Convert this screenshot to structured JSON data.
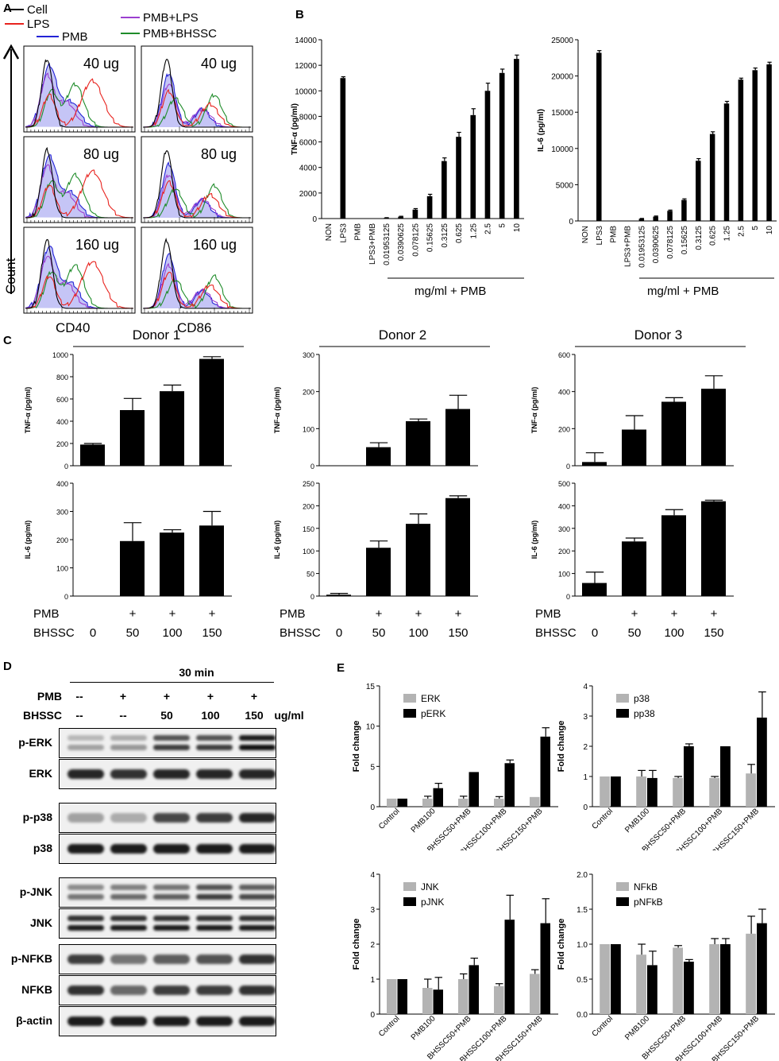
{
  "panels": {
    "a": "A",
    "b": "B",
    "c": "C",
    "d": "D",
    "e": "E"
  },
  "panel_a": {
    "legend": [
      {
        "label": "Cell",
        "color": "#000000"
      },
      {
        "label": "LPS",
        "color": "#e8231e"
      },
      {
        "label": "PMB",
        "color": "#2323d6"
      },
      {
        "label": "PMB+LPS",
        "color": "#9b3fd0"
      },
      {
        "label": "PMB+BHSSC",
        "color": "#1f8c2a"
      }
    ],
    "y_label": "Count",
    "x_labels": [
      "CD40",
      "CD86"
    ],
    "doses": [
      "40 ug",
      "80 ug",
      "160 ug"
    ]
  },
  "panel_b_xgroup": "mg/ml + PMB",
  "panel_c": {
    "donors": [
      "Donor 1",
      "Donor 2",
      "Donor 3"
    ],
    "row_labels": [
      "PMB",
      "BHSSC"
    ],
    "pmb_marks": [
      "",
      "+",
      "+",
      "+"
    ],
    "bhssc_values": [
      "0",
      "50",
      "100",
      "150"
    ]
  },
  "panel_d": {
    "time": "30 min",
    "row_pmb_label": "PMB",
    "row_bhssc_label": "BHSSC",
    "unit": "ug/ml",
    "pmb_marks": [
      "--",
      "+",
      "+",
      "+",
      "+"
    ],
    "bhssc_marks": [
      "--",
      "--",
      "50",
      "100",
      "150"
    ],
    "blots": [
      "p-ERK",
      "ERK",
      "p-p38",
      "p38",
      "p-JNK",
      "JNK",
      "p-NFKB",
      "NFKB",
      "β-actin"
    ]
  },
  "chart_data": [
    {
      "id": "B1",
      "type": "bar",
      "ylabel": "TNF-α (pg/ml)",
      "ylim": [
        0,
        14000
      ],
      "yticks": [
        0,
        2000,
        4000,
        6000,
        8000,
        10000,
        12000,
        14000
      ],
      "categories": [
        "NON",
        "LPS3",
        "PMB",
        "LPS3+PMB",
        "0.01953125",
        "0.0390625",
        "0.078125",
        "0.15625",
        "0.3125",
        "0.625",
        "1.25",
        "2.5",
        "5",
        "10"
      ],
      "values": [
        0,
        11000,
        0,
        0,
        50,
        150,
        700,
        1750,
        4500,
        6400,
        8100,
        10000,
        11400,
        12500
      ],
      "errors": [
        0,
        100,
        0,
        0,
        20,
        30,
        80,
        150,
        250,
        350,
        500,
        600,
        300,
        300
      ]
    },
    {
      "id": "B2",
      "type": "bar",
      "ylabel": "IL-6 (pg/ml)",
      "ylim": [
        0,
        25000
      ],
      "yticks": [
        0,
        5000,
        10000,
        15000,
        20000,
        25000
      ],
      "categories": [
        "NON",
        "LPS3",
        "PMB",
        "LPS3+PMB",
        "0.01953125",
        "0.0390625",
        "0.078125",
        "0.15625",
        "0.3125",
        "0.625",
        "1.25",
        "2.5",
        "5",
        "10"
      ],
      "values": [
        0,
        23200,
        0,
        0,
        300,
        600,
        1400,
        2900,
        8300,
        12000,
        16200,
        19500,
        20800,
        21600
      ],
      "errors": [
        0,
        300,
        0,
        0,
        50,
        80,
        100,
        150,
        300,
        300,
        300,
        200,
        300,
        300
      ]
    },
    {
      "id": "C-TNF-1",
      "type": "bar",
      "ylabel": "TNF-α (pg/ml)",
      "ylim": [
        0,
        1000
      ],
      "yticks": [
        0,
        200,
        400,
        600,
        800,
        1000
      ],
      "values": [
        190,
        500,
        670,
        960
      ],
      "errors": [
        10,
        105,
        55,
        20
      ]
    },
    {
      "id": "C-TNF-2",
      "type": "bar",
      "ylabel": "TNF-α (pg/ml)",
      "ylim": [
        0,
        300
      ],
      "yticks": [
        0,
        100,
        200,
        300
      ],
      "values": [
        0,
        50,
        120,
        153
      ],
      "errors": [
        0,
        12,
        6,
        37
      ]
    },
    {
      "id": "C-TNF-3",
      "type": "bar",
      "ylabel": "TNF-α (pg/ml)",
      "ylim": [
        0,
        600
      ],
      "yticks": [
        0,
        200,
        400,
        600
      ],
      "values": [
        20,
        195,
        345,
        415
      ],
      "errors": [
        50,
        75,
        22,
        70
      ]
    },
    {
      "id": "C-IL6-1",
      "type": "bar",
      "ylabel": "IL-6 (pg/ml)",
      "ylim": [
        0,
        400
      ],
      "yticks": [
        0,
        100,
        200,
        300,
        400
      ],
      "values": [
        0,
        195,
        225,
        250
      ],
      "errors": [
        0,
        65,
        10,
        50
      ]
    },
    {
      "id": "C-IL6-2",
      "type": "bar",
      "ylabel": "IL-6 (pg/ml)",
      "ylim": [
        0,
        250
      ],
      "yticks": [
        0,
        50,
        100,
        150,
        200,
        250
      ],
      "values": [
        3,
        107,
        160,
        217
      ],
      "errors": [
        3,
        15,
        22,
        5
      ]
    },
    {
      "id": "C-IL6-3",
      "type": "bar",
      "ylabel": "IL-6 (pg/ml)",
      "ylim": [
        0,
        500
      ],
      "yticks": [
        0,
        100,
        200,
        300,
        400,
        500
      ],
      "values": [
        58,
        242,
        358,
        420
      ],
      "errors": [
        48,
        15,
        25,
        5
      ]
    },
    {
      "id": "E1",
      "type": "bar",
      "ylabel": "Fold change",
      "ylim": [
        0,
        15
      ],
      "yticks": [
        0,
        5,
        10,
        15
      ],
      "categories": [
        "Control",
        "PMB100",
        "BHSSC50+PMB",
        "BHSSC100+PMB",
        "BHSSC150+PMB"
      ],
      "series": [
        {
          "name": "ERK",
          "color": "#b3b3b3",
          "values": [
            1,
            1,
            1,
            1,
            1.2
          ],
          "errors": [
            0,
            0.3,
            0.3,
            0.25,
            0
          ]
        },
        {
          "name": "pERK",
          "color": "#000000",
          "values": [
            1,
            2.3,
            4.3,
            5.4,
            8.7
          ],
          "errors": [
            0,
            0.6,
            0,
            0.4,
            1.1
          ]
        }
      ]
    },
    {
      "id": "E2",
      "type": "bar",
      "ylabel": "Fold change",
      "ylim": [
        0,
        4
      ],
      "yticks": [
        0,
        1,
        2,
        3,
        4
      ],
      "categories": [
        "Control",
        "PMB100",
        "BHSSC50+PMB",
        "BHSSC100+PMB",
        "BHSSC150+PMB"
      ],
      "series": [
        {
          "name": "p38",
          "color": "#b3b3b3",
          "values": [
            1,
            1,
            0.95,
            0.95,
            1.1
          ],
          "errors": [
            0,
            0.2,
            0.05,
            0.05,
            0.3
          ]
        },
        {
          "name": "pp38",
          "color": "#000000",
          "values": [
            1,
            0.95,
            2,
            2,
            2.95
          ],
          "errors": [
            0,
            0.25,
            0.08,
            0,
            0.85
          ]
        }
      ]
    },
    {
      "id": "E3",
      "type": "bar",
      "ylabel": "Fold change",
      "ylim": [
        0,
        4
      ],
      "yticks": [
        0,
        1,
        2,
        3,
        4
      ],
      "categories": [
        "Control",
        "PMB100",
        "BHSSC50+PMB",
        "BHSSC100+PMB",
        "BHSSC150+PMB"
      ],
      "series": [
        {
          "name": "JNK",
          "color": "#b3b3b3",
          "values": [
            1,
            0.75,
            1,
            0.8,
            1.15
          ],
          "errors": [
            0,
            0.25,
            0.15,
            0.07,
            0.12
          ]
        },
        {
          "name": "pJNK",
          "color": "#000000",
          "values": [
            1,
            0.7,
            1.4,
            2.7,
            2.6
          ],
          "errors": [
            0,
            0.35,
            0.2,
            0.7,
            0.7
          ]
        }
      ]
    },
    {
      "id": "E4",
      "type": "bar",
      "ylabel": "Fold change",
      "ylim": [
        0,
        2.0
      ],
      "yticks": [
        0,
        0.5,
        1.0,
        1.5,
        2.0
      ],
      "categories": [
        "Control",
        "PMB100",
        "BHSSC50+PMB",
        "BHSSC100+PMB",
        "BHSSC150+PMB"
      ],
      "series": [
        {
          "name": "NFkB",
          "color": "#b3b3b3",
          "values": [
            1,
            0.85,
            0.95,
            1,
            1.15
          ],
          "errors": [
            0,
            0.15,
            0.03,
            0.08,
            0.25
          ]
        },
        {
          "name": "pNFkB",
          "color": "#000000",
          "values": [
            1,
            0.7,
            0.75,
            1,
            1.3
          ],
          "errors": [
            0,
            0.2,
            0.03,
            0.08,
            0.2
          ]
        }
      ]
    }
  ]
}
